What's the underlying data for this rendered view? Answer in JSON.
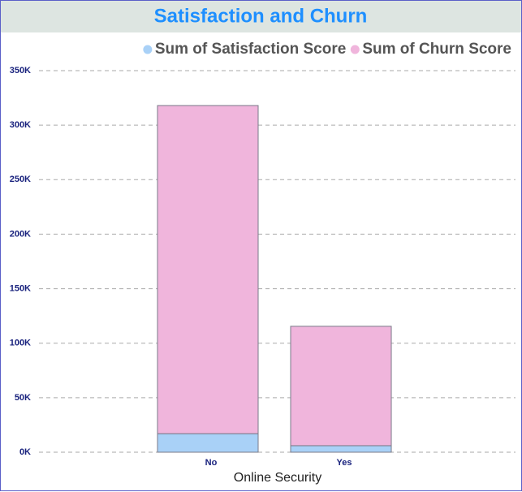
{
  "chart_data": {
    "type": "stacked_bar",
    "title": "Satisfaction and Churn",
    "x_label": "Online Security",
    "categories": [
      "No",
      "Yes"
    ],
    "series": [
      {
        "name": "Sum of Satisfaction Score",
        "color": "#a9d1f7",
        "values": [
          17000,
          6000
        ]
      },
      {
        "name": "Sum of Churn Score",
        "color": "#f0b5dc",
        "values": [
          301000,
          109500
        ]
      }
    ],
    "ylim": [
      0,
      350000
    ],
    "yticks": [
      {
        "value": 0,
        "label": "0K"
      },
      {
        "value": 50000,
        "label": "50K"
      },
      {
        "value": 100000,
        "label": "100K"
      },
      {
        "value": 150000,
        "label": "150K"
      },
      {
        "value": 200000,
        "label": "200K"
      },
      {
        "value": 250000,
        "label": "250K"
      },
      {
        "value": 300000,
        "label": "300K"
      },
      {
        "value": 350000,
        "label": "350K"
      }
    ],
    "grid": true,
    "legend": "top-right"
  }
}
